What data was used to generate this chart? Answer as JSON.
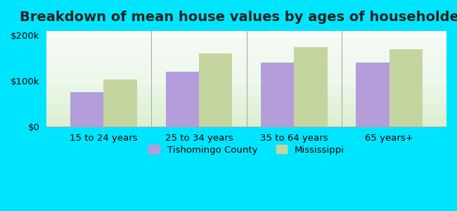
{
  "title": "Breakdown of mean house values by ages of householders",
  "categories": [
    "15 to 24 years",
    "25 to 34 years",
    "35 to 64 years",
    "65 years+"
  ],
  "tishomingo": [
    75000,
    120000,
    140000,
    140000
  ],
  "mississippi": [
    103000,
    160000,
    175000,
    170000
  ],
  "tishomingo_color": "#b39ddb",
  "mississippi_color": "#c5d5a0",
  "background_outer": "#00e5ff",
  "background_inner_top": "#e8f5e0",
  "background_inner_bottom": "#ffffff",
  "ylim": [
    0,
    210000
  ],
  "yticks": [
    0,
    100000,
    200000
  ],
  "ytick_labels": [
    "$0",
    "$100k",
    "$200k"
  ],
  "legend_tishomingo": "Tishomingo County",
  "legend_mississippi": "Mississippi",
  "bar_width": 0.35,
  "title_fontsize": 14
}
